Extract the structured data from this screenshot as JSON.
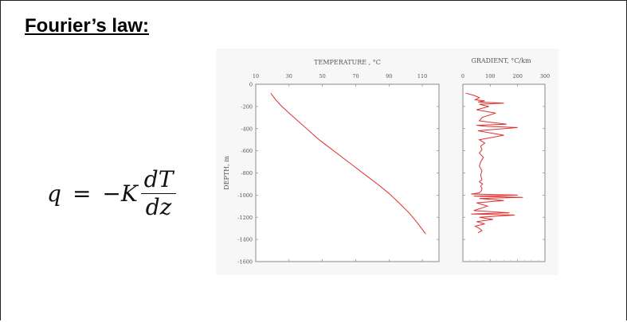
{
  "slide": {
    "title": "Fourier’s law:",
    "equation": {
      "lhs": "q",
      "equals": "=",
      "sign": "−",
      "coef": "K",
      "numerator": "dT",
      "denominator": "dz"
    }
  },
  "chart_data": [
    {
      "type": "line",
      "title": "TEMPERATURE , °C",
      "xlabel": "",
      "ylabel": "DEPTH, m",
      "xlim": [
        10,
        120
      ],
      "ylim": [
        -1600,
        0
      ],
      "xticks": [
        "10",
        "30",
        "50",
        "70",
        "90",
        "110"
      ],
      "yticks": [
        "0",
        "-200",
        "-400",
        "-600",
        "-800",
        "-1000",
        "-1200",
        "-1400",
        "-1600"
      ],
      "color": "#e03030",
      "x": [
        19,
        20,
        22,
        25,
        30,
        36,
        42,
        48,
        55,
        62,
        69,
        76,
        83,
        90,
        96,
        102,
        107,
        112
      ],
      "y": [
        -80,
        -100,
        -140,
        -190,
        -260,
        -340,
        -420,
        -500,
        -580,
        -660,
        -740,
        -820,
        -900,
        -985,
        -1070,
        -1160,
        -1250,
        -1350
      ]
    },
    {
      "type": "line",
      "title": "GRADIENT, °C/km",
      "xlabel": "",
      "xlim": [
        0,
        300
      ],
      "ylim": [
        -1600,
        0
      ],
      "xticks": [
        "0",
        "100",
        "200",
        "300"
      ],
      "color": "#e03030",
      "x": [
        10,
        40,
        60,
        45,
        80,
        55,
        150,
        60,
        95,
        50,
        120,
        70,
        60,
        160,
        50,
        90,
        200,
        55,
        150,
        60,
        80,
        65,
        70,
        60,
        75,
        65,
        60,
        70,
        65,
        70,
        60,
        72,
        65,
        70,
        68,
        60,
        30,
        200,
        40,
        220,
        60,
        150,
        50,
        90,
        40,
        170,
        30,
        190,
        60,
        110,
        50,
        80,
        45,
        60,
        70,
        55
      ],
      "y": [
        -80,
        -100,
        -120,
        -140,
        -150,
        -160,
        -170,
        -180,
        -200,
        -230,
        -260,
        -300,
        -330,
        -360,
        -370,
        -380,
        -390,
        -420,
        -460,
        -500,
        -530,
        -560,
        -590,
        -620,
        -660,
        -700,
        -740,
        -780,
        -820,
        -860,
        -880,
        -900,
        -920,
        -940,
        -960,
        -980,
        -990,
        -1000,
        -1010,
        -1020,
        -1030,
        -1050,
        -1070,
        -1100,
        -1140,
        -1160,
        -1170,
        -1180,
        -1200,
        -1220,
        -1240,
        -1260,
        -1280,
        -1300,
        -1320,
        -1340
      ]
    }
  ]
}
